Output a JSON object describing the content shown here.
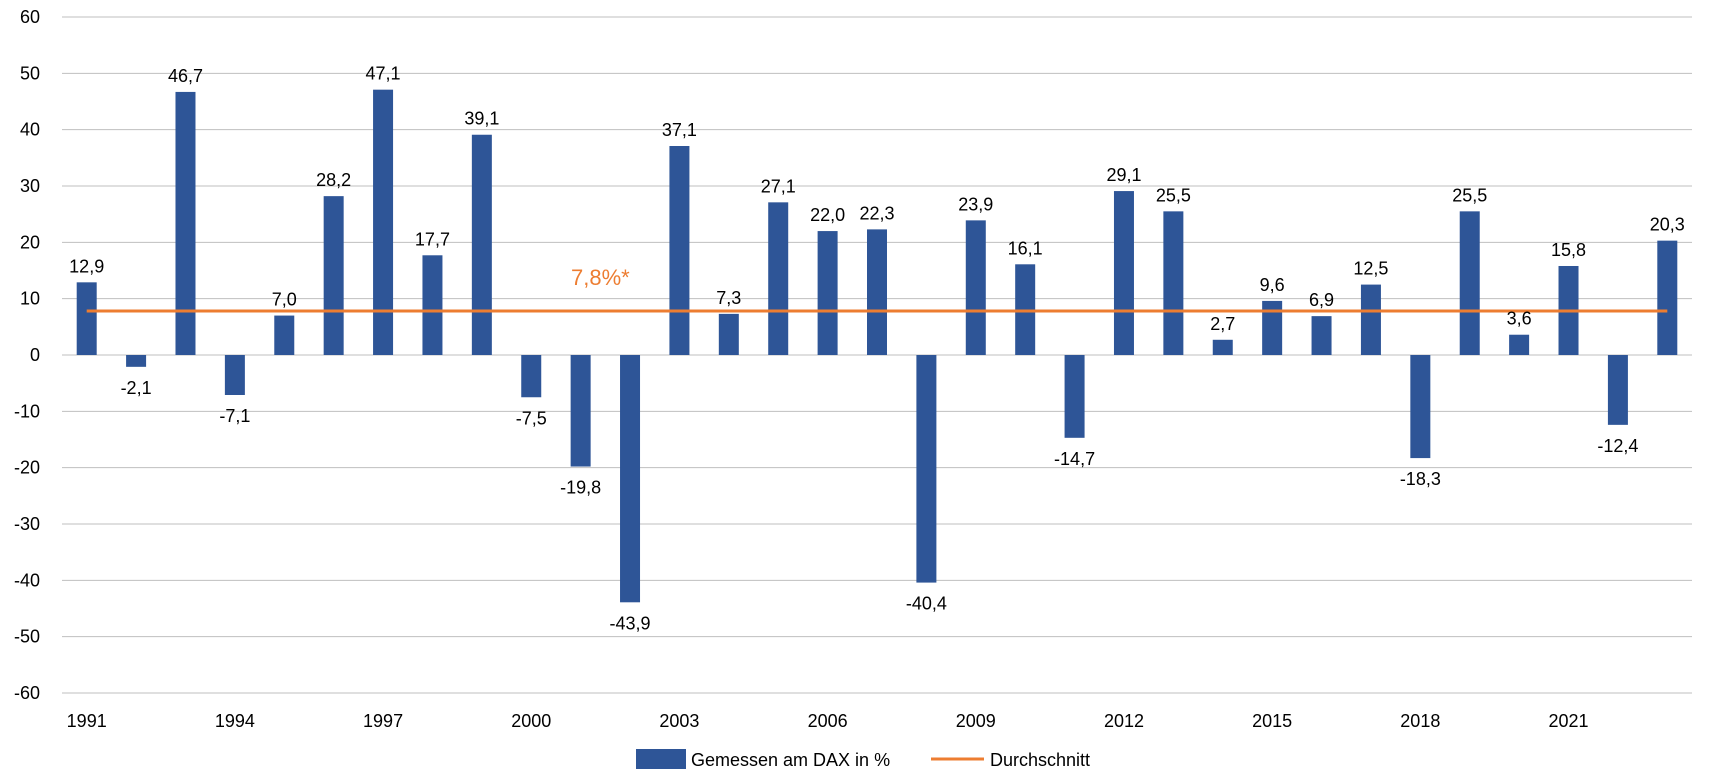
{
  "chart_data": {
    "type": "bar",
    "title": "",
    "xlabel": "",
    "ylabel": "",
    "categories": [
      "1991",
      "1992",
      "1993",
      "1994",
      "1995",
      "1996",
      "1997",
      "1998",
      "1999",
      "2000",
      "2001",
      "2002",
      "2003",
      "2004",
      "2005",
      "2006",
      "2007",
      "2008",
      "2009",
      "2010",
      "2011",
      "2012",
      "2013",
      "2014",
      "2015",
      "2016",
      "2017",
      "2018",
      "2019",
      "2020",
      "2021",
      "2022",
      "2023"
    ],
    "x_tick_labels": [
      "1991",
      "1994",
      "1997",
      "2000",
      "2003",
      "2006",
      "2009",
      "2012",
      "2015",
      "2018",
      "2021"
    ],
    "series": [
      {
        "name": "Gemessen am DAX in %",
        "type": "bar",
        "color": "#2E5597",
        "values": [
          12.9,
          -2.1,
          46.7,
          -7.1,
          7.0,
          28.2,
          47.1,
          17.7,
          39.1,
          -7.5,
          -19.8,
          -43.9,
          37.1,
          7.3,
          27.1,
          22.0,
          22.3,
          -40.4,
          23.9,
          16.1,
          -14.7,
          29.1,
          25.5,
          2.7,
          9.6,
          6.9,
          12.5,
          -18.3,
          25.5,
          3.6,
          15.8,
          -12.4,
          20.3
        ],
        "labels": [
          "12,9",
          "-2,1",
          "46,7",
          "-7,1",
          "7,0",
          "28,2",
          "47,1",
          "17,7",
          "39,1",
          "-7,5",
          "-19,8",
          "-43,9",
          "37,1",
          "7,3",
          "27,1",
          "22,0",
          "22,3",
          "-40,4",
          "23,9",
          "16,1",
          "-14,7",
          "29,1",
          "25,5",
          "2,7",
          "9,6",
          "6,9",
          "12,5",
          "-18,3",
          "25,5",
          "3,6",
          "15,8",
          "-12,4",
          "20,3"
        ]
      },
      {
        "name": "Durchschnitt",
        "type": "line",
        "color": "#ED7D31",
        "value": 7.8,
        "annotation": "7,8%*"
      }
    ],
    "ylim": [
      -60,
      60
    ],
    "yticks": [
      60,
      50,
      40,
      30,
      20,
      10,
      0,
      -10,
      -20,
      -30,
      -40,
      -50,
      -60
    ],
    "grid": true,
    "legend_position": "bottom-center"
  }
}
